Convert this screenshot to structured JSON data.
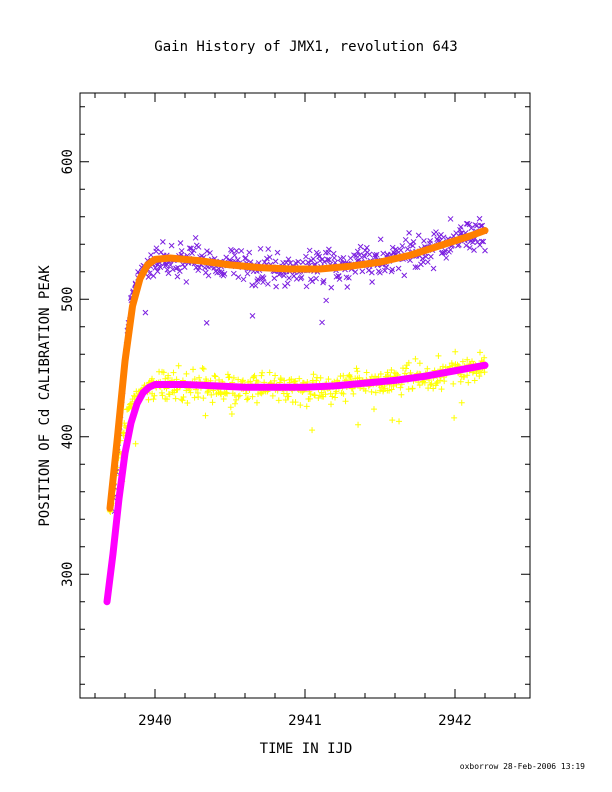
{
  "chart_data": {
    "type": "scatter",
    "title": "Gain History of JMX1, revolution 643",
    "xlabel": "TIME IN IJD",
    "ylabel": "POSITION OF Cd CALIBRATION PEAK",
    "xlim": [
      2939.5,
      2942.5
    ],
    "ylim": [
      210,
      650
    ],
    "x_ticks": [
      2940,
      2941,
      2942
    ],
    "y_ticks": [
      300,
      400,
      500,
      600
    ],
    "grid": false,
    "footer": "oxborrow 28-Feb-2006 13:19",
    "series": [
      {
        "marker": "x",
        "color": "#7b1fe0",
        "x_range": [
          2939.72,
          2942.2
        ],
        "points_approx": [
          [
            2939.72,
            352
          ],
          [
            2939.74,
            378
          ],
          [
            2939.76,
            405
          ],
          [
            2939.78,
            430
          ],
          [
            2939.8,
            455
          ],
          [
            2939.82,
            478
          ],
          [
            2939.84,
            498
          ],
          [
            2939.86,
            512
          ],
          [
            2939.9,
            520
          ],
          [
            2939.95,
            524
          ],
          [
            2940.0,
            528
          ],
          [
            2940.2,
            528
          ],
          [
            2940.5,
            525
          ],
          [
            2940.8,
            522
          ],
          [
            2941.0,
            522
          ],
          [
            2941.2,
            524
          ],
          [
            2941.5,
            528
          ],
          [
            2941.8,
            536
          ],
          [
            2942.0,
            543
          ],
          [
            2942.2,
            549
          ]
        ]
      },
      {
        "marker": "+",
        "color": "#ffff00",
        "x_range": [
          2939.7,
          2942.2
        ],
        "points_approx": [
          [
            2939.7,
            345
          ],
          [
            2939.74,
            372
          ],
          [
            2939.78,
            400
          ],
          [
            2939.82,
            418
          ],
          [
            2939.86,
            428
          ],
          [
            2939.92,
            434
          ],
          [
            2940.0,
            437
          ],
          [
            2940.2,
            437
          ],
          [
            2940.5,
            436
          ],
          [
            2940.8,
            435
          ],
          [
            2941.0,
            436
          ],
          [
            2941.3,
            438
          ],
          [
            2941.6,
            441
          ],
          [
            2941.9,
            446
          ],
          [
            2942.2,
            452
          ]
        ]
      },
      {
        "type": "line",
        "color": "#ff7f00",
        "x": [
          2939.7,
          2939.75,
          2939.8,
          2939.85,
          2939.9,
          2939.95,
          2940.0,
          2940.1,
          2940.3,
          2940.5,
          2940.7,
          2940.9,
          2941.1,
          2941.3,
          2941.5,
          2941.7,
          2941.9,
          2942.1,
          2942.2
        ],
        "y": [
          348,
          400,
          455,
          495,
          515,
          525,
          529,
          530,
          528,
          525,
          523,
          522,
          522,
          524,
          527,
          532,
          539,
          546,
          550
        ]
      },
      {
        "type": "line",
        "color": "#ff00ff",
        "x": [
          2939.68,
          2939.72,
          2939.76,
          2939.8,
          2939.84,
          2939.88,
          2939.92,
          2939.96,
          2940.0,
          2940.2,
          2940.4,
          2940.6,
          2940.8,
          2941.0,
          2941.2,
          2941.4,
          2941.6,
          2941.8,
          2942.0,
          2942.2
        ],
        "y": [
          280,
          315,
          355,
          388,
          410,
          424,
          432,
          436,
          438,
          438,
          437,
          436,
          436,
          436,
          437,
          439,
          441,
          444,
          448,
          452
        ]
      }
    ]
  }
}
